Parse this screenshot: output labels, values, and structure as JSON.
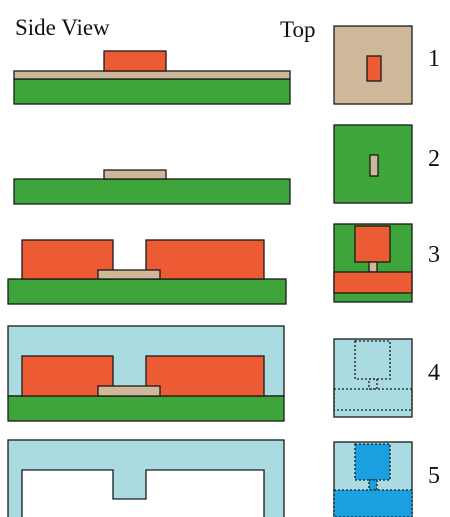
{
  "headers": {
    "side_view": "Side View",
    "top": "Top"
  },
  "steps": [
    "1",
    "2",
    "3",
    "4",
    "5"
  ],
  "colors": {
    "substrate_green": "#3ea53a",
    "copper_orange": "#ec5b33",
    "tan_layer": "#cfb89a",
    "encapsulant_light_blue": "#a9dbe0",
    "filled_blue": "#1a9fe0",
    "outline": "#1a1a1a",
    "cavity_white": "#ffffff"
  }
}
